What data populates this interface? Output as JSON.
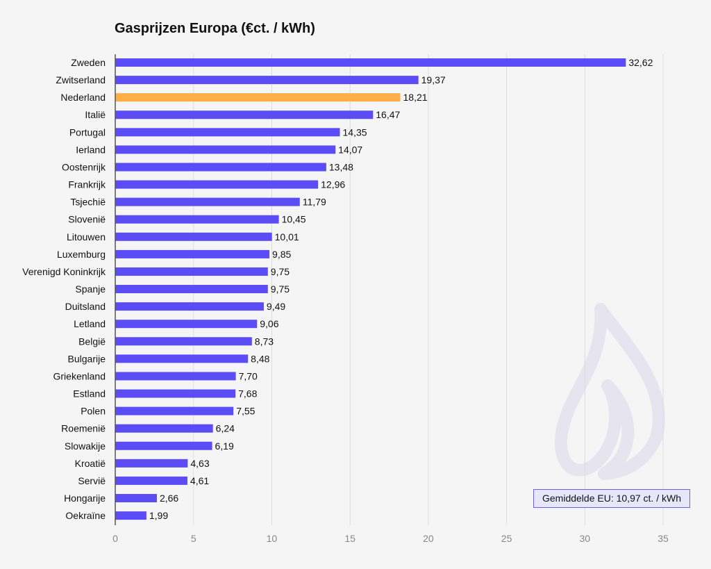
{
  "chart_data": {
    "type": "bar",
    "orientation": "horizontal",
    "title": "Gasprijzen Europa (€ct. / kWh)",
    "xlabel": "",
    "ylabel": "",
    "xlim": [
      0,
      35
    ],
    "xticks": [
      "0",
      "5",
      "10",
      "15",
      "20",
      "25",
      "30",
      "35"
    ],
    "grid": "vertical",
    "categories": [
      "Zweden",
      "Zwitserland",
      "Nederland",
      "Italië",
      "Portugal",
      "Ierland",
      "Oostenrijk",
      "Frankrijk",
      "Tsjechië",
      "Slovenië",
      "Litouwen",
      "Luxemburg",
      "Verenigd Koninkrijk",
      "Spanje",
      "Duitsland",
      "Letland",
      "België",
      "Bulgarije",
      "Griekenland",
      "Estland",
      "Polen",
      "Roemenië",
      "Slowakije",
      "Kroatië",
      "Servië",
      "Hongarije",
      "Oekraïne"
    ],
    "values": [
      32.62,
      19.37,
      18.21,
      16.47,
      14.35,
      14.07,
      13.48,
      12.96,
      11.79,
      10.45,
      10.01,
      9.85,
      9.75,
      9.75,
      9.49,
      9.06,
      8.73,
      8.48,
      7.7,
      7.68,
      7.55,
      6.24,
      6.19,
      4.63,
      4.61,
      2.66,
      1.99
    ],
    "value_labels": [
      "32,62",
      "19,37",
      "18,21",
      "16,47",
      "14,35",
      "14,07",
      "13,48",
      "12,96",
      "11,79",
      "10,45",
      "10,01",
      "9,85",
      "9,75",
      "9,75",
      "9,49",
      "9,06",
      "8,73",
      "8,48",
      "7,70",
      "7,68",
      "7,55",
      "6,24",
      "6,19",
      "4,63",
      "4,61",
      "2,66",
      "1,99"
    ],
    "highlight_category": "Nederland",
    "colors": {
      "bar": "#5b4cf5",
      "highlight": "#ffad47",
      "grid": "#dcdcdc",
      "axis": "#555555",
      "tick_label": "#888888",
      "text": "#111111"
    },
    "annotation": "Gemiddelde EU: 10,97 ct. / kWh",
    "watermark_icon": "flame-icon"
  }
}
